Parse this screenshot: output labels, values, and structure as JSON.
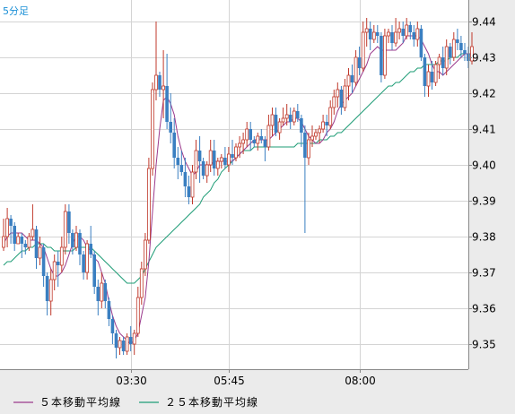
{
  "timeframe_label": "5分足",
  "chart_data": {
    "type": "candlestick",
    "ylim": [
      9.343,
      9.446
    ],
    "xlim": [
      0,
      129
    ],
    "y_ticks": [
      "9.44",
      "9.43",
      "9.42",
      "9.41",
      "9.40",
      "9.39",
      "9.38",
      "9.37",
      "9.36",
      "9.35"
    ],
    "y_tick_values": [
      9.44,
      9.43,
      9.42,
      9.41,
      9.4,
      9.39,
      9.38,
      9.37,
      9.36,
      9.35
    ],
    "x_ticks": [
      "03:30",
      "05:45",
      "08:00"
    ],
    "x_tick_positions": [
      36,
      63,
      99
    ],
    "grid": true,
    "colors": {
      "up": "#c0392b",
      "down": "#3a7fc1",
      "ma5": "#9b3a8c",
      "ma25": "#1e9c76",
      "grid": "#d4d4d4",
      "plot_bg": "#ffffff"
    },
    "candles": [
      [
        9.377,
        9.385,
        9.376,
        9.38
      ],
      [
        9.38,
        9.388,
        9.377,
        9.385
      ],
      [
        9.385,
        9.386,
        9.378,
        9.383
      ],
      [
        9.383,
        9.384,
        9.376,
        9.378
      ],
      [
        9.378,
        9.381,
        9.378,
        9.38
      ],
      [
        9.38,
        9.381,
        9.374,
        9.378
      ],
      [
        9.378,
        9.379,
        9.375,
        9.377
      ],
      [
        9.377,
        9.381,
        9.376,
        9.38
      ],
      [
        9.38,
        9.389,
        9.379,
        9.382
      ],
      [
        9.382,
        9.383,
        9.371,
        9.374
      ],
      [
        9.374,
        9.38,
        9.372,
        9.377
      ],
      [
        9.377,
        9.378,
        9.366,
        9.369
      ],
      [
        9.369,
        9.37,
        9.358,
        9.362
      ],
      [
        9.362,
        9.371,
        9.358,
        9.368
      ],
      [
        9.368,
        9.375,
        9.365,
        9.373
      ],
      [
        9.373,
        9.376,
        9.366,
        9.372
      ],
      [
        9.372,
        9.38,
        9.37,
        9.377
      ],
      [
        9.377,
        9.389,
        9.375,
        9.387
      ],
      [
        9.387,
        9.389,
        9.378,
        9.381
      ],
      [
        9.381,
        9.382,
        9.375,
        9.377
      ],
      [
        9.377,
        9.383,
        9.376,
        9.381
      ],
      [
        9.381,
        9.382,
        9.372,
        9.375
      ],
      [
        9.375,
        9.376,
        9.368,
        9.37
      ],
      [
        9.37,
        9.379,
        9.368,
        9.378
      ],
      [
        9.378,
        9.383,
        9.374,
        9.375
      ],
      [
        9.375,
        9.376,
        9.364,
        9.366
      ],
      [
        9.366,
        9.368,
        9.358,
        9.362
      ],
      [
        9.362,
        9.37,
        9.36,
        9.367
      ],
      [
        9.367,
        9.368,
        9.36,
        9.362
      ],
      [
        9.362,
        9.363,
        9.355,
        9.357
      ],
      [
        9.357,
        9.358,
        9.35,
        9.353
      ],
      [
        9.353,
        9.354,
        9.346,
        9.349
      ],
      [
        9.349,
        9.352,
        9.347,
        9.351
      ],
      [
        9.351,
        9.352,
        9.347,
        9.348
      ],
      [
        9.348,
        9.353,
        9.347,
        9.352
      ],
      [
        9.352,
        9.355,
        9.348,
        9.35
      ],
      [
        9.35,
        9.354,
        9.347,
        9.353
      ],
      [
        9.353,
        9.366,
        9.352,
        9.363
      ],
      [
        9.363,
        9.373,
        9.361,
        9.371
      ],
      [
        9.371,
        9.381,
        9.369,
        9.379
      ],
      [
        9.379,
        9.402,
        9.378,
        9.399
      ],
      [
        9.399,
        9.423,
        9.397,
        9.421
      ],
      [
        9.421,
        9.44,
        9.418,
        9.425
      ],
      [
        9.425,
        9.426,
        9.419,
        9.421
      ],
      [
        9.421,
        9.432,
        9.413,
        9.422
      ],
      [
        9.422,
        9.431,
        9.41,
        9.412
      ],
      [
        9.412,
        9.42,
        9.406,
        9.409
      ],
      [
        9.409,
        9.413,
        9.399,
        9.402
      ],
      [
        9.402,
        9.405,
        9.396,
        9.4
      ],
      [
        9.4,
        9.404,
        9.397,
        9.398
      ],
      [
        9.398,
        9.402,
        9.391,
        9.394
      ],
      [
        9.394,
        9.397,
        9.389,
        9.391
      ],
      [
        9.391,
        9.4,
        9.389,
        9.398
      ],
      [
        9.398,
        9.407,
        9.396,
        9.404
      ],
      [
        9.404,
        9.408,
        9.395,
        9.401
      ],
      [
        9.401,
        9.402,
        9.396,
        9.397
      ],
      [
        9.397,
        9.401,
        9.395,
        9.4
      ],
      [
        9.4,
        9.407,
        9.398,
        9.404
      ],
      [
        9.404,
        9.407,
        9.397,
        9.399
      ],
      [
        9.399,
        9.402,
        9.397,
        9.401
      ],
      [
        9.401,
        9.403,
        9.399,
        9.402
      ],
      [
        9.402,
        9.405,
        9.399,
        9.4
      ],
      [
        9.4,
        9.405,
        9.398,
        9.403
      ],
      [
        9.403,
        9.407,
        9.4,
        9.402
      ],
      [
        9.402,
        9.406,
        9.401,
        9.405
      ],
      [
        9.405,
        9.408,
        9.402,
        9.406
      ],
      [
        9.406,
        9.409,
        9.403,
        9.407
      ],
      [
        9.407,
        9.412,
        9.405,
        9.41
      ],
      [
        9.41,
        9.412,
        9.404,
        9.407
      ],
      [
        9.407,
        9.408,
        9.405,
        9.406
      ],
      [
        9.406,
        9.409,
        9.404,
        9.408
      ],
      [
        9.408,
        9.41,
        9.406,
        9.407
      ],
      [
        9.407,
        9.408,
        9.401,
        9.405
      ],
      [
        9.405,
        9.414,
        9.404,
        9.411
      ],
      [
        9.411,
        9.416,
        9.408,
        9.414
      ],
      [
        9.414,
        9.416,
        9.408,
        9.409
      ],
      [
        9.409,
        9.413,
        9.407,
        9.412
      ],
      [
        9.412,
        9.416,
        9.411,
        9.413
      ],
      [
        9.413,
        9.417,
        9.411,
        9.414
      ],
      [
        9.414,
        9.416,
        9.41,
        9.412
      ],
      [
        9.412,
        9.416,
        9.411,
        9.415
      ],
      [
        9.415,
        9.417,
        9.412,
        9.413
      ],
      [
        9.413,
        9.414,
        9.405,
        9.409
      ],
      [
        9.409,
        9.411,
        9.381,
        9.402
      ],
      [
        9.402,
        9.409,
        9.4,
        9.407
      ],
      [
        9.407,
        9.411,
        9.405,
        9.408
      ],
      [
        9.408,
        9.41,
        9.407,
        9.409
      ],
      [
        9.409,
        9.411,
        9.406,
        9.41
      ],
      [
        9.41,
        9.414,
        9.409,
        9.412
      ],
      [
        9.412,
        9.414,
        9.408,
        9.411
      ],
      [
        9.411,
        9.418,
        9.41,
        9.416
      ],
      [
        9.416,
        9.421,
        9.414,
        9.419
      ],
      [
        9.419,
        9.423,
        9.416,
        9.421
      ],
      [
        9.421,
        9.422,
        9.414,
        9.416
      ],
      [
        9.416,
        9.424,
        9.415,
        9.422
      ],
      [
        9.422,
        9.427,
        9.418,
        9.425
      ],
      [
        9.425,
        9.428,
        9.42,
        9.423
      ],
      [
        9.423,
        9.432,
        9.422,
        9.43
      ],
      [
        9.43,
        9.433,
        9.425,
        9.427
      ],
      [
        9.427,
        9.44,
        9.426,
        9.437
      ],
      [
        9.437,
        9.441,
        9.433,
        9.438
      ],
      [
        9.438,
        9.44,
        9.432,
        9.435
      ],
      [
        9.435,
        9.439,
        9.434,
        9.437
      ],
      [
        9.437,
        9.439,
        9.434,
        9.436
      ],
      [
        9.436,
        9.437,
        9.423,
        9.425
      ],
      [
        9.425,
        9.438,
        9.424,
        9.436
      ],
      [
        9.436,
        9.438,
        9.434,
        9.437
      ],
      [
        9.437,
        9.439,
        9.432,
        9.434
      ],
      [
        9.434,
        9.441,
        9.433,
        9.437
      ],
      [
        9.437,
        9.44,
        9.435,
        9.438
      ],
      [
        9.438,
        9.44,
        9.434,
        9.436
      ],
      [
        9.436,
        9.441,
        9.435,
        9.439
      ],
      [
        9.439,
        9.44,
        9.435,
        9.437
      ],
      [
        9.437,
        9.439,
        9.433,
        9.435
      ],
      [
        9.435,
        9.44,
        9.433,
        9.438
      ],
      [
        9.438,
        9.439,
        9.429,
        9.43
      ],
      [
        9.43,
        9.431,
        9.419,
        9.422
      ],
      [
        9.422,
        9.428,
        9.419,
        9.426
      ],
      [
        9.426,
        9.429,
        9.421,
        9.423
      ],
      [
        9.423,
        9.429,
        9.422,
        9.428
      ],
      [
        9.428,
        9.431,
        9.424,
        9.43
      ],
      [
        9.43,
        9.433,
        9.425,
        9.427
      ],
      [
        9.427,
        9.435,
        9.425,
        9.433
      ],
      [
        9.433,
        9.434,
        9.428,
        9.43
      ],
      [
        9.43,
        9.437,
        9.429,
        9.435
      ],
      [
        9.435,
        9.438,
        9.432,
        9.434
      ],
      [
        9.434,
        9.436,
        9.43,
        9.432
      ],
      [
        9.432,
        9.434,
        9.429,
        9.431
      ],
      [
        9.431,
        9.433,
        9.427,
        9.429
      ],
      [
        9.429,
        9.437,
        9.428,
        9.433
      ]
    ],
    "ma5_values": [
      9.378,
      9.38,
      9.381,
      9.381,
      9.381,
      9.381,
      9.38,
      9.379,
      9.379,
      9.379,
      9.378,
      9.377,
      9.374,
      9.371,
      9.369,
      9.369,
      9.37,
      9.372,
      9.375,
      9.378,
      9.38,
      9.38,
      9.379,
      9.377,
      9.376,
      9.374,
      9.373,
      9.37,
      9.367,
      9.362,
      9.358,
      9.355,
      9.353,
      9.352,
      9.351,
      9.35,
      9.351,
      9.353,
      9.358,
      9.363,
      9.373,
      9.387,
      9.4,
      9.41,
      9.418,
      9.419,
      9.417,
      9.414,
      9.408,
      9.404,
      9.401,
      9.399,
      9.397,
      9.398,
      9.4,
      9.4,
      9.4,
      9.4,
      9.401,
      9.401,
      9.401,
      9.401,
      9.401,
      9.401,
      9.402,
      9.403,
      9.404,
      9.405,
      9.406,
      9.407,
      9.407,
      9.407,
      9.407,
      9.407,
      9.408,
      9.409,
      9.41,
      9.411,
      9.412,
      9.412,
      9.413,
      9.413,
      9.412,
      9.41,
      9.408,
      9.407,
      9.406,
      9.406,
      9.407,
      9.409,
      9.41,
      9.412,
      9.415,
      9.417,
      9.418,
      9.419,
      9.42,
      9.422,
      9.424,
      9.426,
      9.428,
      9.431,
      9.432,
      9.433,
      9.432,
      9.432,
      9.432,
      9.432,
      9.432,
      9.433,
      9.434,
      9.436,
      9.436,
      9.436,
      9.436,
      9.435,
      9.433,
      9.431,
      9.428,
      9.426,
      9.426,
      9.425,
      9.426,
      9.427,
      9.428,
      9.429,
      9.43,
      9.431,
      9.431,
      9.431
    ],
    "ma25_values": [
      9.372,
      9.373,
      9.373,
      9.374,
      9.375,
      9.376,
      9.376,
      9.377,
      9.377,
      9.378,
      9.378,
      9.378,
      9.377,
      9.377,
      9.376,
      9.376,
      9.376,
      9.376,
      9.376,
      9.376,
      9.377,
      9.377,
      9.377,
      9.377,
      9.377,
      9.376,
      9.375,
      9.374,
      9.373,
      9.372,
      9.371,
      9.37,
      9.369,
      9.368,
      9.367,
      9.367,
      9.367,
      9.368,
      9.369,
      9.371,
      9.373,
      9.375,
      9.377,
      9.378,
      9.379,
      9.38,
      9.381,
      9.382,
      9.383,
      9.384,
      9.385,
      9.386,
      9.387,
      9.388,
      9.389,
      9.391,
      9.392,
      9.393,
      9.395,
      9.396,
      9.398,
      9.399,
      9.4,
      9.401,
      9.402,
      9.403,
      9.404,
      9.404,
      9.404,
      9.405,
      9.405,
      9.405,
      9.405,
      9.405,
      9.405,
      9.405,
      9.405,
      9.405,
      9.405,
      9.405,
      9.405,
      9.406,
      9.406,
      9.406,
      9.406,
      9.406,
      9.406,
      9.407,
      9.407,
      9.407,
      9.408,
      9.408,
      9.409,
      9.409,
      9.41,
      9.411,
      9.412,
      9.413,
      9.414,
      9.415,
      9.416,
      9.417,
      9.418,
      9.419,
      9.42,
      9.421,
      9.422,
      9.422,
      9.423,
      9.423,
      9.424,
      9.425,
      9.426,
      9.426,
      9.427,
      9.427,
      9.428,
      9.428,
      9.428,
      9.428,
      9.429,
      9.429,
      9.429,
      9.43,
      9.43,
      9.43,
      9.431,
      9.431,
      9.431,
      9.431
    ],
    "legend": [
      {
        "name": "５本移動平均線",
        "color": "#9b3a8c"
      },
      {
        "name": "２５本移動平均線",
        "color": "#1e9c76"
      }
    ]
  }
}
